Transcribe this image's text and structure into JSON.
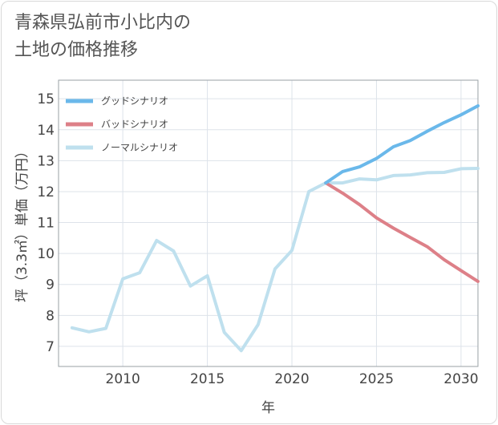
{
  "page": {
    "title": "青森県弘前市小比内の\n土地の価格推移"
  },
  "chart_data": {
    "type": "line",
    "title": "青森県弘前市小比内の土地の価格推移",
    "xlabel": "年",
    "ylabel": "坪（3.3㎡）単価（万円）",
    "xlim": [
      2006.2,
      2031
    ],
    "ylim": [
      6.35,
      15.6
    ],
    "x_ticks": [
      2010,
      2015,
      2020,
      2025,
      2030
    ],
    "y_ticks": [
      7,
      8,
      9,
      10,
      11,
      12,
      13,
      14,
      15
    ],
    "grid": true,
    "legend_position": "top-left",
    "series": [
      {
        "name": "グッドシナリオ",
        "color": "#6ab8ea",
        "x": [
          2022,
          2023,
          2024,
          2025,
          2026,
          2027,
          2028,
          2029,
          2030,
          2031
        ],
        "values": [
          12.28,
          12.65,
          12.8,
          13.07,
          13.45,
          13.65,
          13.95,
          14.23,
          14.48,
          14.77
        ]
      },
      {
        "name": "バッドシナリオ",
        "color": "#dd8088",
        "x": [
          2022,
          2023,
          2024,
          2025,
          2026,
          2027,
          2028,
          2029,
          2030,
          2031
        ],
        "values": [
          12.28,
          11.95,
          11.58,
          11.15,
          10.82,
          10.52,
          10.22,
          9.8,
          9.45,
          9.1
        ]
      },
      {
        "name": "ノーマルシナリオ",
        "color": "#bfe0ee",
        "x": [
          2007,
          2008,
          2009,
          2010,
          2011,
          2012,
          2013,
          2014,
          2015,
          2016,
          2017,
          2018,
          2019,
          2020,
          2021,
          2022,
          2023,
          2024,
          2025,
          2026,
          2027,
          2028,
          2029,
          2030,
          2031
        ],
        "values": [
          7.6,
          7.47,
          7.58,
          9.18,
          9.38,
          10.42,
          10.08,
          8.95,
          9.28,
          7.45,
          6.86,
          7.7,
          9.5,
          10.1,
          12.0,
          12.28,
          12.28,
          12.41,
          12.38,
          12.52,
          12.54,
          12.61,
          12.62,
          12.74,
          12.75
        ]
      }
    ]
  }
}
